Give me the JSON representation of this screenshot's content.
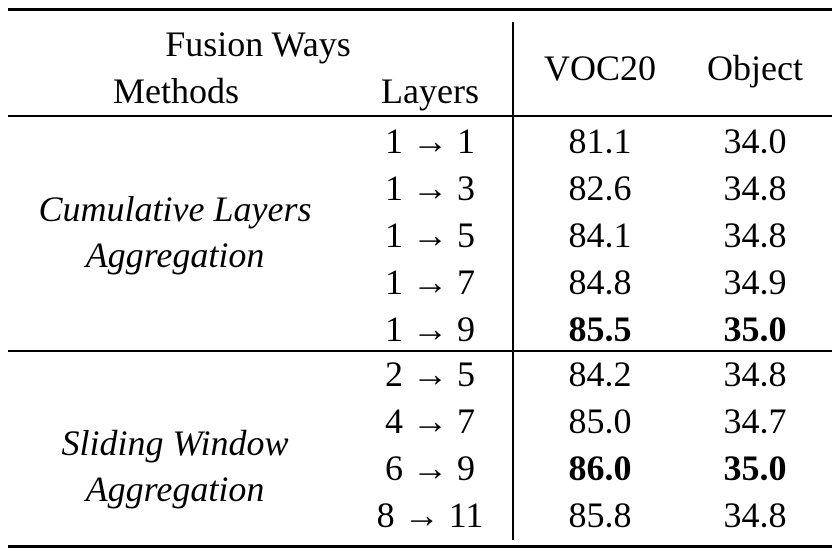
{
  "header": {
    "fusion_ways": "Fusion Ways",
    "methods": "Methods",
    "layers": "Layers",
    "voc20": "VOC20",
    "object": "Object"
  },
  "groups": [
    {
      "label_line1": "Cumulative Layers",
      "label_line2": "Aggregation",
      "rows": [
        {
          "layers": "1 → 1",
          "voc20": "81.1",
          "object": "34.0",
          "bold": false
        },
        {
          "layers": "1 → 3",
          "voc20": "82.6",
          "object": "34.8",
          "bold": false
        },
        {
          "layers": "1 → 5",
          "voc20": "84.1",
          "object": "34.8",
          "bold": false
        },
        {
          "layers": "1 → 7",
          "voc20": "84.8",
          "object": "34.9",
          "bold": false
        },
        {
          "layers": "1 → 9",
          "voc20": "85.5",
          "object": "35.0",
          "bold": true
        }
      ]
    },
    {
      "label_line1": "Sliding Window",
      "label_line2": "Aggregation",
      "rows": [
        {
          "layers": "2 → 5",
          "voc20": "84.2",
          "object": "34.8",
          "bold": false
        },
        {
          "layers": "4 → 7",
          "voc20": "85.0",
          "object": "34.7",
          "bold": false
        },
        {
          "layers": "6 → 9",
          "voc20": "86.0",
          "object": "35.0",
          "bold": true
        },
        {
          "layers": "8 → 11",
          "voc20": "85.8",
          "object": "34.8",
          "bold": false
        }
      ]
    }
  ]
}
